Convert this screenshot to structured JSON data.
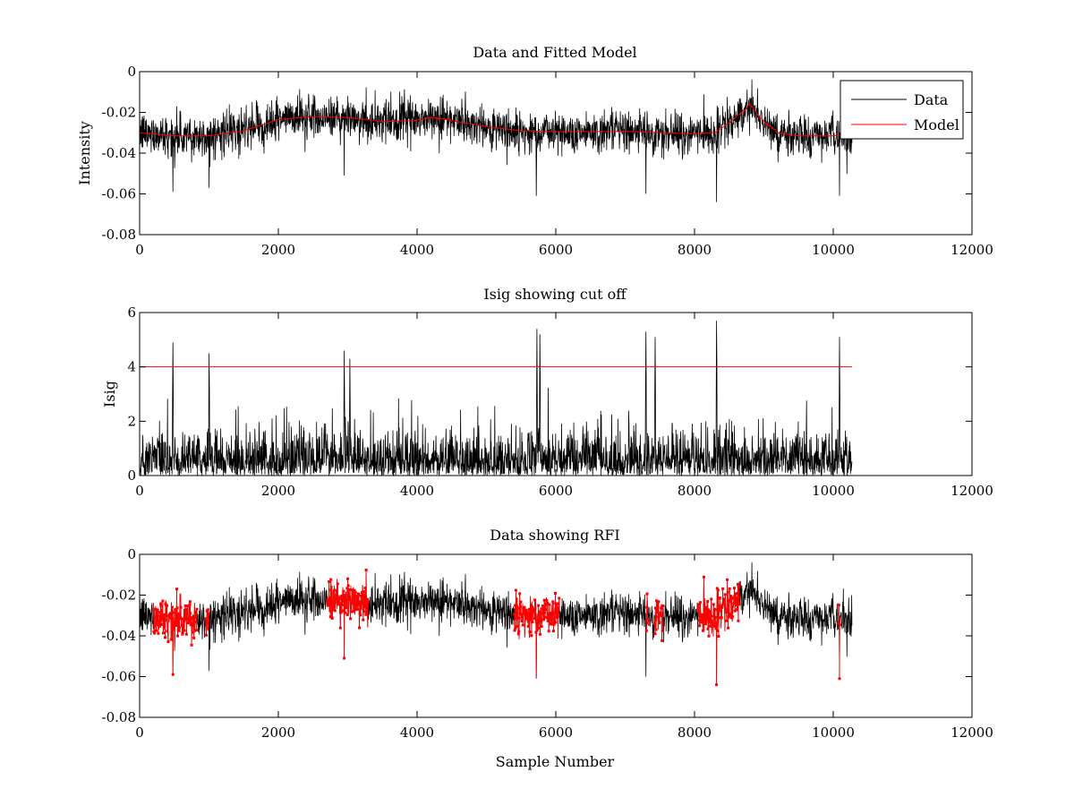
{
  "colors": {
    "data": "#000000",
    "model": "#ff0000",
    "threshold": "#ff0000",
    "rfi": "#ff0000",
    "background": "#ffffff"
  },
  "chart_data": [
    {
      "id": "panel1",
      "type": "line",
      "title": "Data and Fitted Model",
      "xlabel": "",
      "ylabel": "Intensity",
      "xlim": [
        0,
        12000
      ],
      "ylim": [
        -0.08,
        0
      ],
      "xticks": [
        0,
        2000,
        4000,
        6000,
        8000,
        10000,
        12000
      ],
      "yticks": [
        -0.08,
        -0.06,
        -0.04,
        -0.02,
        0
      ],
      "xtick_labels": [
        "0",
        "2000",
        "4000",
        "6000",
        "8000",
        "10000",
        "12000"
      ],
      "ytick_labels": [
        "-0.08",
        "-0.06",
        "-0.04",
        "-0.02",
        "0"
      ],
      "legend": {
        "placement": "top-right",
        "entries": [
          "Data",
          "Model"
        ]
      },
      "series": [
        {
          "name": "Data",
          "kind": "noisy-band",
          "x_range": [
            0,
            10270
          ],
          "noise_sd": 0.005,
          "dips": [
            {
              "x": 480,
              "value": -0.059
            },
            {
              "x": 1000,
              "value": -0.057
            },
            {
              "x": 2950,
              "value": -0.051
            },
            {
              "x": 5720,
              "value": -0.061
            },
            {
              "x": 7300,
              "value": -0.06
            },
            {
              "x": 8320,
              "value": -0.064
            },
            {
              "x": 10090,
              "value": -0.061
            }
          ]
        },
        {
          "name": "Model",
          "x": [
            0,
            500,
            1000,
            1500,
            2000,
            2500,
            3000,
            3500,
            4000,
            4200,
            4500,
            5000,
            5500,
            6000,
            7000,
            8000,
            8300,
            8500,
            8700,
            8800,
            9000,
            9200,
            9500,
            10000,
            10270
          ],
          "y": [
            -0.03,
            -0.0315,
            -0.0315,
            -0.029,
            -0.0235,
            -0.022,
            -0.0225,
            -0.0245,
            -0.024,
            -0.0225,
            -0.024,
            -0.027,
            -0.029,
            -0.0295,
            -0.0293,
            -0.0305,
            -0.0298,
            -0.025,
            -0.0195,
            -0.016,
            -0.0245,
            -0.03,
            -0.0315,
            -0.0315,
            -0.031
          ]
        }
      ]
    },
    {
      "id": "panel2",
      "type": "line",
      "title": "Isig showing cut off",
      "xlabel": "",
      "ylabel": "Isig",
      "xlim": [
        0,
        12000
      ],
      "ylim": [
        0,
        6
      ],
      "xticks": [
        0,
        2000,
        4000,
        6000,
        8000,
        10000,
        12000
      ],
      "yticks": [
        0,
        2,
        4,
        6
      ],
      "xtick_labels": [
        "0",
        "2000",
        "4000",
        "6000",
        "8000",
        "10000",
        "12000"
      ],
      "ytick_labels": [
        "0",
        "2",
        "4",
        "6"
      ],
      "threshold": {
        "y": 4,
        "x_range": [
          0,
          10270
        ]
      },
      "series": [
        {
          "name": "Isig",
          "kind": "abs-noise",
          "x_range": [
            0,
            10270
          ],
          "peaks": [
            {
              "x": 480,
              "value": 4.9
            },
            {
              "x": 1000,
              "value": 4.5
            },
            {
              "x": 2950,
              "value": 4.6
            },
            {
              "x": 3030,
              "value": 4.3
            },
            {
              "x": 5730,
              "value": 5.4
            },
            {
              "x": 5770,
              "value": 5.2
            },
            {
              "x": 7300,
              "value": 5.3
            },
            {
              "x": 7430,
              "value": 5.1
            },
            {
              "x": 8320,
              "value": 5.7
            },
            {
              "x": 10090,
              "value": 5.1
            }
          ]
        }
      ]
    },
    {
      "id": "panel3",
      "type": "line",
      "title": "Data showing RFI",
      "xlabel": "Sample Number",
      "ylabel": "",
      "xlim": [
        0,
        12000
      ],
      "ylim": [
        -0.08,
        0
      ],
      "xticks": [
        0,
        2000,
        4000,
        6000,
        8000,
        10000,
        12000
      ],
      "yticks": [
        -0.08,
        -0.06,
        -0.04,
        -0.02,
        0
      ],
      "xtick_labels": [
        "0",
        "2000",
        "4000",
        "6000",
        "8000",
        "10000",
        "12000"
      ],
      "ytick_labels": [
        "-0.08",
        "-0.06",
        "-0.04",
        "-0.02",
        "0"
      ],
      "series": [
        {
          "name": "Data",
          "kind": "noisy-band",
          "x_range": [
            0,
            10270
          ]
        },
        {
          "name": "RFI",
          "kind": "markers",
          "regions": [
            [
              200,
              830
            ],
            [
              950,
              1000
            ],
            [
              2700,
              3300
            ],
            [
              5400,
              6050
            ],
            [
              7300,
              7330
            ],
            [
              7420,
              7550
            ],
            [
              8050,
              8650
            ],
            [
              10080,
              10100
            ]
          ]
        }
      ]
    }
  ]
}
